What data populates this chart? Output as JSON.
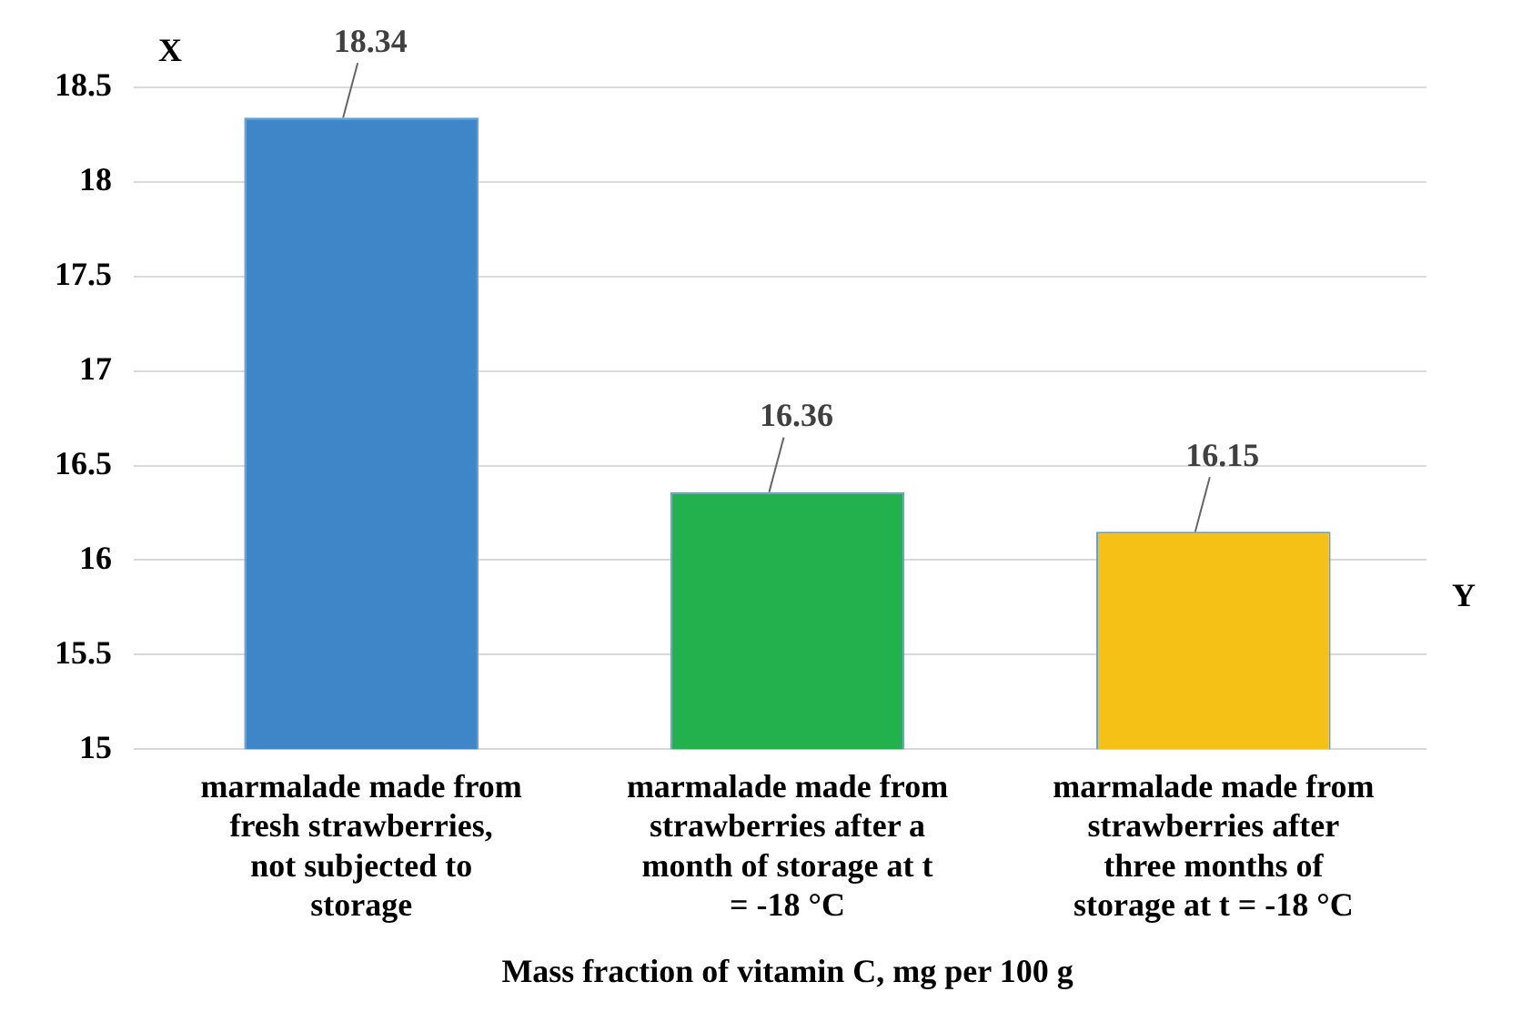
{
  "chart_data": {
    "type": "bar",
    "title": "Mass fraction of vitamin C, mg per 100 g",
    "xlabel": "Y",
    "ylabel": "X",
    "categories": [
      "marmalade made from fresh strawberries, not subjected to storage",
      "marmalade made from strawberries after a month of storage at t = -18 °C",
      "marmalade made from strawberries after three months of storage at t = -18 °C"
    ],
    "values": [
      18.34,
      16.36,
      16.15
    ],
    "colors": [
      "#3f86c8",
      "#22b14c",
      "#f5c116"
    ],
    "ylim": [
      15,
      18.5
    ],
    "yticks": [
      15,
      15.5,
      16,
      16.5,
      17,
      17.5,
      18,
      18.5
    ],
    "grid": "y",
    "legend": false,
    "data_labels": true
  }
}
